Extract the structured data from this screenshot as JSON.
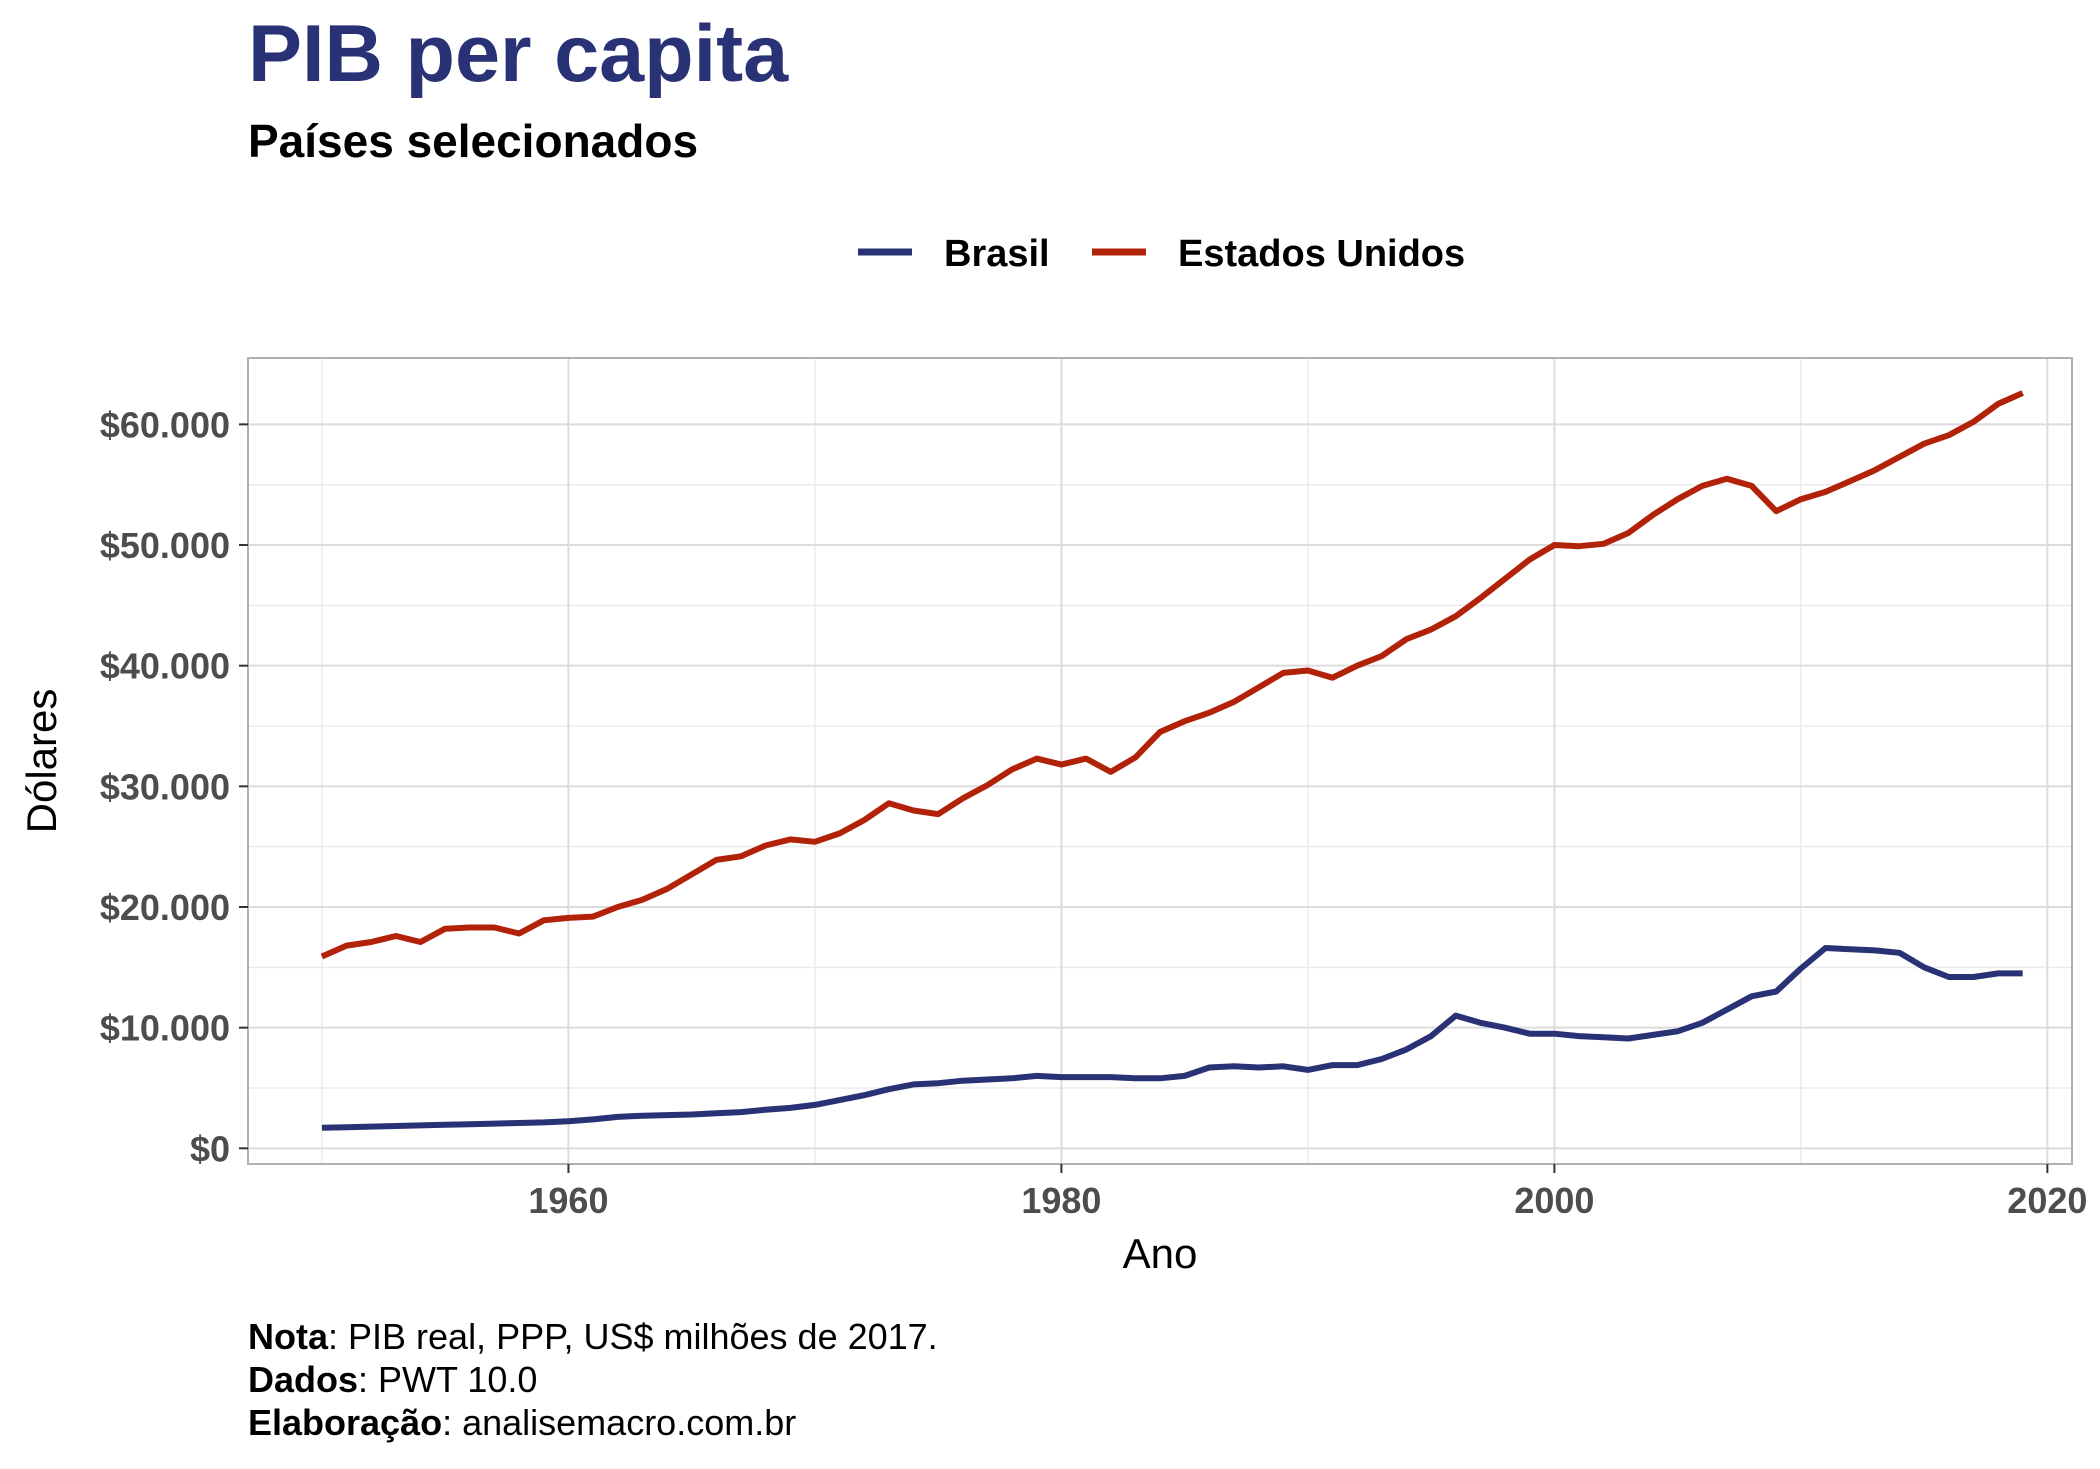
{
  "header": {
    "title": "PIB per capita",
    "subtitle": "Países selecionados"
  },
  "caption": {
    "nota_label": "Nota",
    "nota_text": ": PIB real, PPP, US$ milhões de 2017.",
    "dados_label": "Dados",
    "dados_text": ": PWT 10.0",
    "elab_label": "Elaboração",
    "elab_text": ": analisemacro.com.br"
  },
  "colors": {
    "brasil": "#283275",
    "eua": "#b22208",
    "grid": "#dcdcdc",
    "border": "#b0b0b0"
  },
  "chart_data": {
    "type": "line",
    "xlabel": "Ano",
    "ylabel": "Dólares",
    "xlim": [
      1947,
      2021
    ],
    "ylim": [
      -1300,
      65500
    ],
    "x_ticks": [
      1960,
      1980,
      2000,
      2020
    ],
    "y_ticks": [
      0,
      10000,
      20000,
      30000,
      40000,
      50000,
      60000
    ],
    "y_tick_labels": [
      "$0",
      "$10.000",
      "$20.000",
      "$30.000",
      "$40.000",
      "$50.000",
      "$60.000"
    ],
    "grid": true,
    "legend_position": "top",
    "x": [
      1950,
      1951,
      1952,
      1953,
      1954,
      1955,
      1956,
      1957,
      1958,
      1959,
      1960,
      1961,
      1962,
      1963,
      1964,
      1965,
      1966,
      1967,
      1968,
      1969,
      1970,
      1971,
      1972,
      1973,
      1974,
      1975,
      1976,
      1977,
      1978,
      1979,
      1980,
      1981,
      1982,
      1983,
      1984,
      1985,
      1986,
      1987,
      1988,
      1989,
      1990,
      1991,
      1992,
      1993,
      1994,
      1995,
      1996,
      1997,
      1998,
      1999,
      2000,
      2001,
      2002,
      2003,
      2004,
      2005,
      2006,
      2007,
      2008,
      2009,
      2010,
      2011,
      2012,
      2013,
      2014,
      2015,
      2016,
      2017,
      2018,
      2019
    ],
    "series": [
      {
        "name": "Brasil",
        "values": [
          1700,
          1750,
          1800,
          1850,
          1900,
          1950,
          2000,
          2050,
          2100,
          2150,
          2250,
          2400,
          2600,
          2700,
          2750,
          2800,
          2900,
          3000,
          3200,
          3350,
          3600,
          4000,
          4400,
          4900,
          5300,
          5400,
          5600,
          5700,
          5800,
          6000,
          5900,
          5900,
          5900,
          5800,
          5800,
          6000,
          6700,
          6800,
          6700,
          6800,
          6500,
          6900,
          6900,
          7400,
          8200,
          9300,
          11000,
          10400,
          10000,
          9500,
          9500,
          9300,
          9200,
          9100,
          9400,
          9700,
          10400,
          11500,
          12600,
          13000,
          14900,
          16600,
          16500,
          16400,
          16200,
          15000,
          14200,
          14200,
          14500,
          14500
        ]
      },
      {
        "name": "Estados Unidos",
        "values": [
          15900,
          16800,
          17100,
          17600,
          17100,
          18200,
          18300,
          18300,
          17800,
          18900,
          19100,
          19200,
          20000,
          20600,
          21500,
          22700,
          23900,
          24200,
          25100,
          25600,
          25400,
          26100,
          27200,
          28600,
          28000,
          27700,
          29000,
          30100,
          31400,
          32300,
          31800,
          32300,
          31200,
          32400,
          34500,
          35400,
          36100,
          37000,
          38200,
          39400,
          39600,
          39000,
          40000,
          40800,
          42200,
          43000,
          44100,
          45600,
          47200,
          48800,
          50000,
          49900,
          50100,
          51000,
          52500,
          53800,
          54900,
          55500,
          54900,
          52800,
          53800,
          54400,
          55300,
          56200,
          57300,
          58400,
          59100,
          60200,
          61700,
          62600
        ]
      }
    ]
  }
}
